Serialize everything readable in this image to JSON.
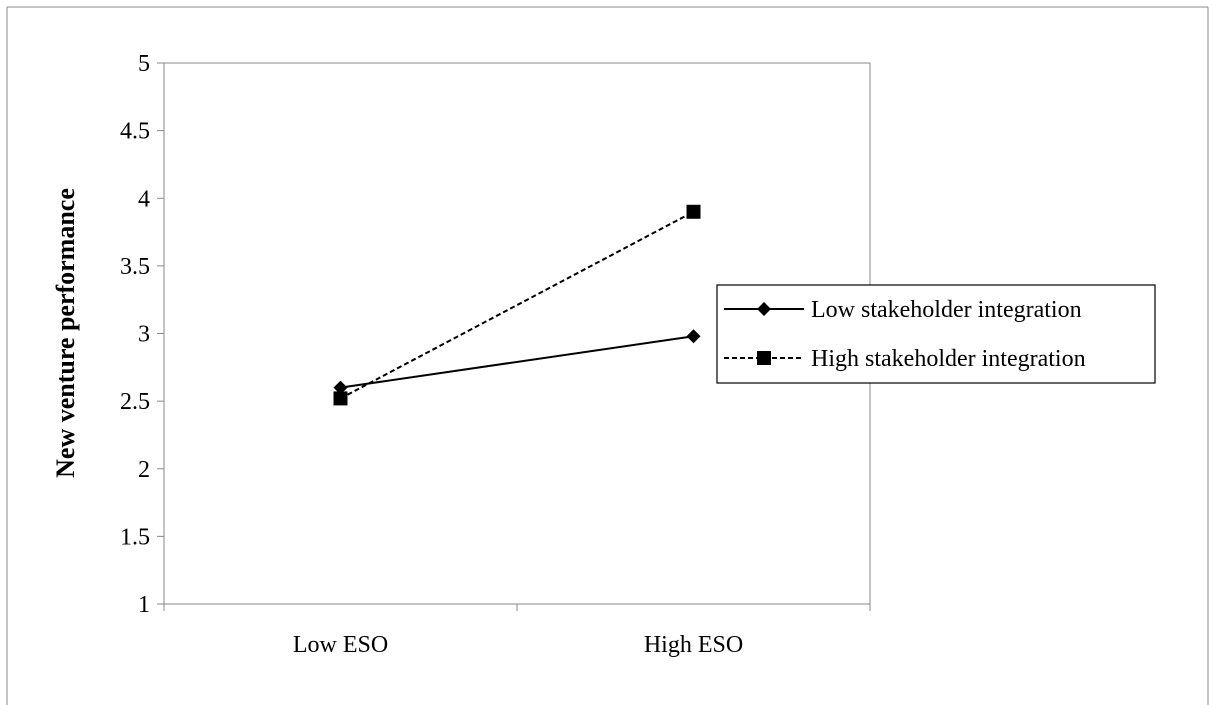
{
  "chart_data": {
    "type": "line",
    "title": "",
    "xlabel": "",
    "ylabel": "New venture performance",
    "categories": [
      "Low ESO",
      "High ESO"
    ],
    "ylim": [
      1,
      5
    ],
    "yticks": [
      "1",
      "1.5",
      "2",
      "2.5",
      "3",
      "3.5",
      "4",
      "4.5",
      "5"
    ],
    "grid": false,
    "legend_position": "right",
    "series": [
      {
        "name": "Low stakeholder integration",
        "values": [
          2.6,
          2.98
        ],
        "marker": "diamond",
        "line_style": "solid",
        "color": "#000000"
      },
      {
        "name": "High stakeholder integration",
        "values": [
          2.52,
          3.9
        ],
        "marker": "square",
        "line_style": "dashed",
        "color": "#000000"
      }
    ]
  }
}
